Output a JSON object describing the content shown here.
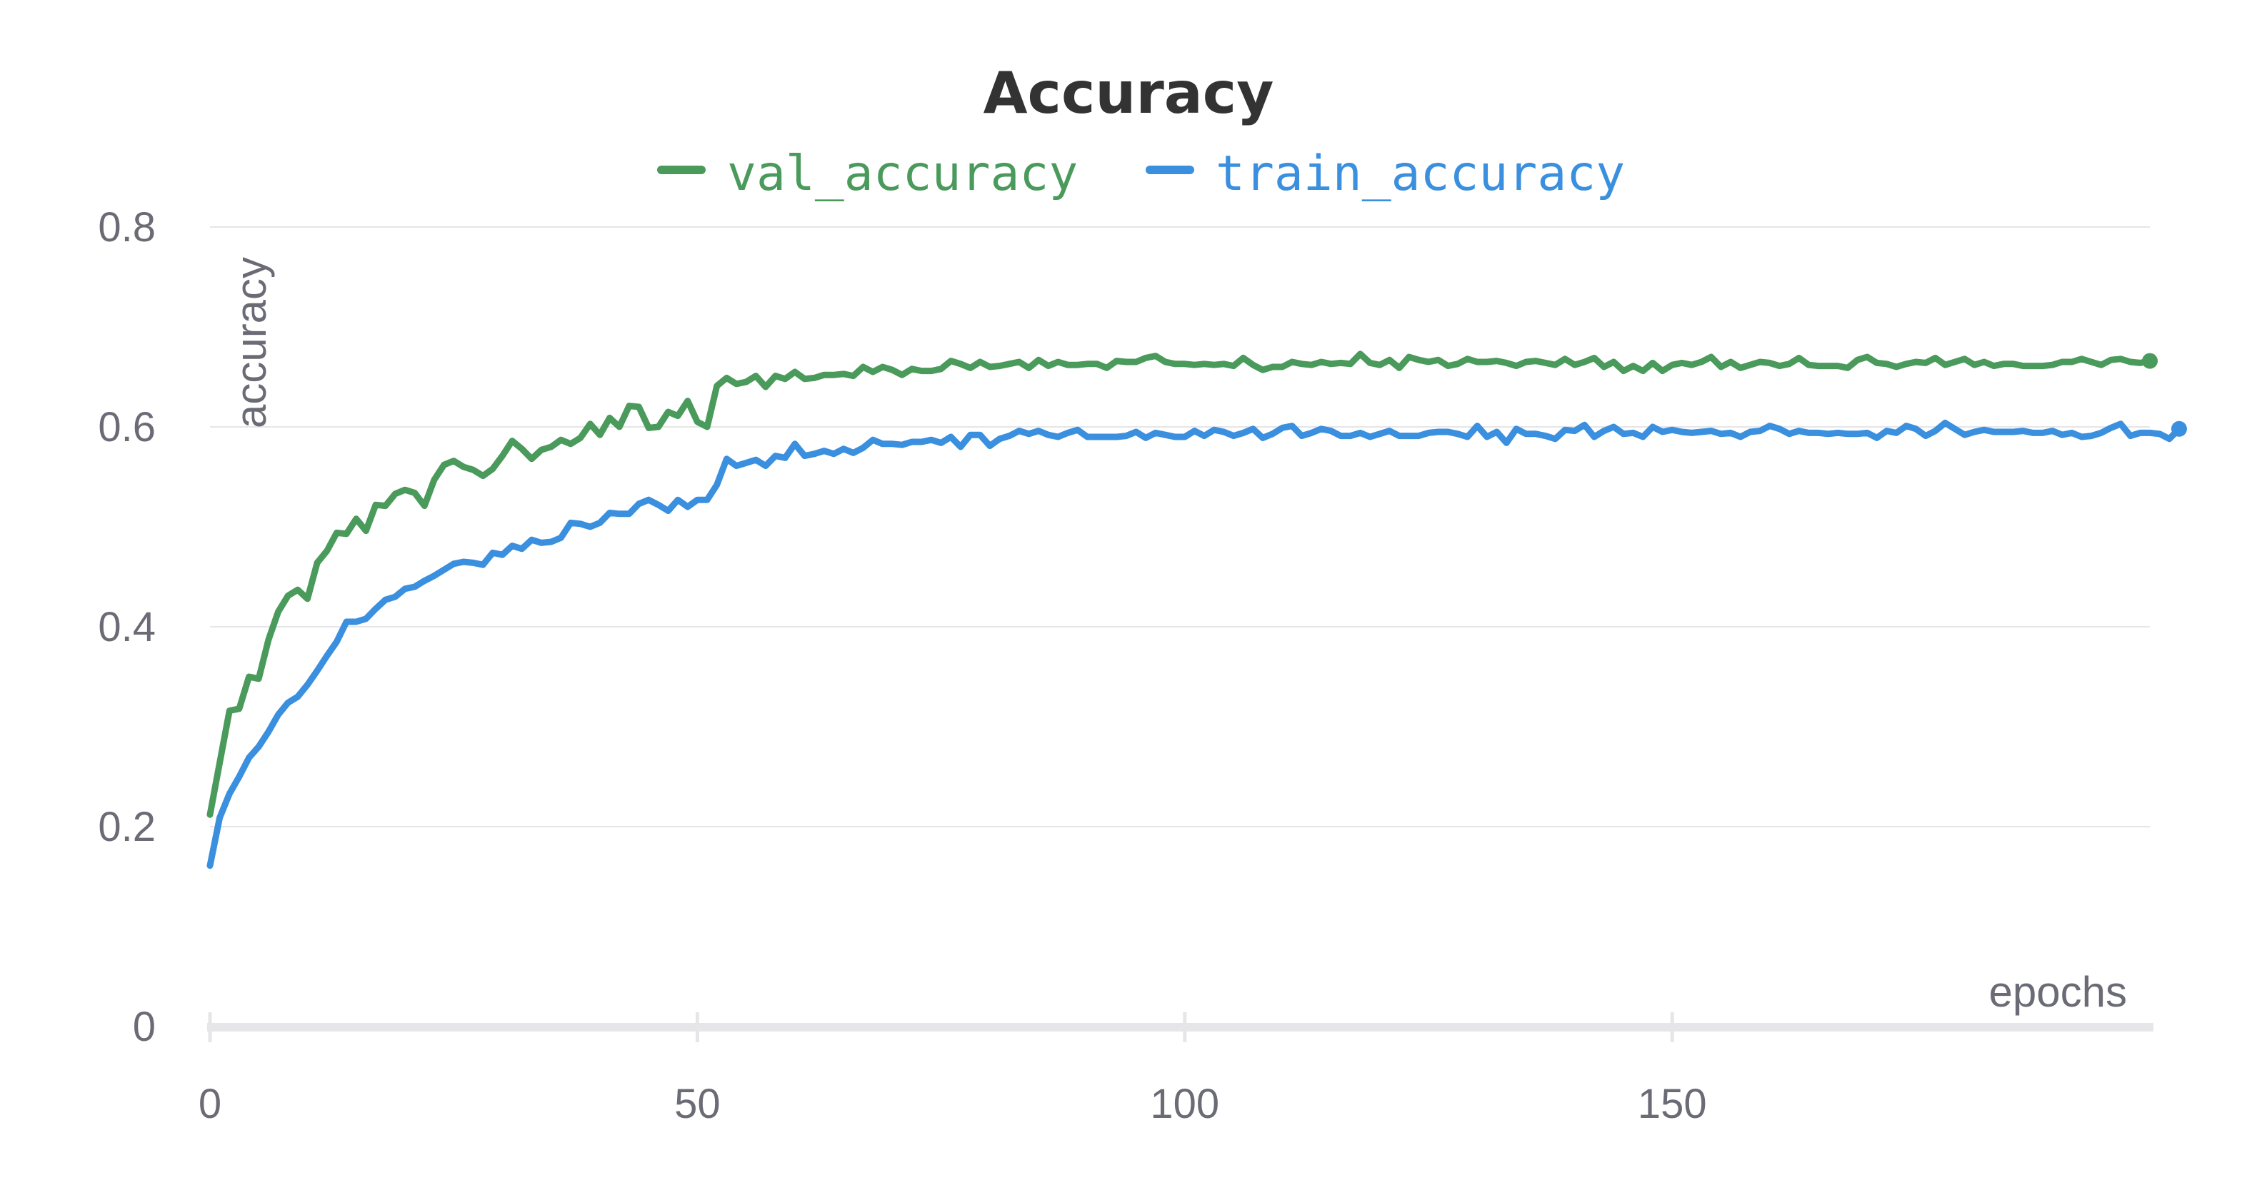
{
  "chart_data": {
    "type": "line",
    "title": "Accuracy",
    "xlabel": "epochs",
    "ylabel": "accuracy",
    "xlim": [
      0,
      199
    ],
    "ylim": [
      0,
      0.8
    ],
    "x_ticks": [
      0,
      50,
      100,
      150
    ],
    "y_ticks": [
      0,
      0.2,
      0.4,
      0.6,
      0.8
    ],
    "grid": true,
    "legend_position": "top-center",
    "series": [
      {
        "name": "val_accuracy",
        "color": "#4a9a5c",
        "values": [
          0.212,
          0.264,
          0.316,
          0.318,
          0.35,
          0.348,
          0.387,
          0.415,
          0.431,
          0.437,
          0.428,
          0.464,
          0.476,
          0.494,
          0.493,
          0.508,
          0.496,
          0.522,
          0.521,
          0.533,
          0.537,
          0.534,
          0.521,
          0.547,
          0.562,
          0.566,
          0.56,
          0.557,
          0.551,
          0.558,
          0.571,
          0.586,
          0.578,
          0.568,
          0.577,
          0.58,
          0.587,
          0.583,
          0.589,
          0.603,
          0.592,
          0.609,
          0.6,
          0.621,
          0.62,
          0.599,
          0.6,
          0.615,
          0.611,
          0.626,
          0.605,
          0.6,
          0.641,
          0.649,
          0.643,
          0.645,
          0.651,
          0.64,
          0.651,
          0.648,
          0.655,
          0.648,
          0.649,
          0.652,
          0.652,
          0.653,
          0.651,
          0.66,
          0.655,
          0.66,
          0.657,
          0.652,
          0.658,
          0.656,
          0.656,
          0.658,
          0.666,
          0.663,
          0.659,
          0.665,
          0.66,
          0.661,
          0.663,
          0.665,
          0.659,
          0.667,
          0.661,
          0.665,
          0.662,
          0.662,
          0.663,
          0.663,
          0.659,
          0.666,
          0.665,
          0.665,
          0.669,
          0.671,
          0.665,
          0.663,
          0.663,
          0.662,
          0.663,
          0.662,
          0.663,
          0.661,
          0.669,
          0.662,
          0.657,
          0.66,
          0.66,
          0.665,
          0.663,
          0.662,
          0.665,
          0.663,
          0.664,
          0.663,
          0.673,
          0.664,
          0.662,
          0.667,
          0.659,
          0.67,
          0.667,
          0.665,
          0.667,
          0.661,
          0.663,
          0.668,
          0.665,
          0.665,
          0.666,
          0.664,
          0.661,
          0.665,
          0.666,
          0.664,
          0.662,
          0.668,
          0.662,
          0.665,
          0.669,
          0.66,
          0.665,
          0.656,
          0.661,
          0.656,
          0.664,
          0.656,
          0.662,
          0.664,
          0.662,
          0.665,
          0.67,
          0.66,
          0.665,
          0.659,
          0.662,
          0.665,
          0.664,
          0.661,
          0.663,
          0.669,
          0.662,
          0.661,
          0.661,
          0.661,
          0.659,
          0.667,
          0.67,
          0.664,
          0.663,
          0.66,
          0.663,
          0.665,
          0.664,
          0.669,
          0.662,
          0.665,
          0.668,
          0.662,
          0.665,
          0.661,
          0.663,
          0.663,
          0.661,
          0.661,
          0.661,
          0.662,
          0.665,
          0.665,
          0.668,
          0.665,
          0.662,
          0.667,
          0.668,
          0.665,
          0.664,
          0.666
        ]
      },
      {
        "name": "train_accuracy",
        "color": "#3a8fde",
        "values": [
          0.161,
          0.209,
          0.233,
          0.25,
          0.269,
          0.28,
          0.295,
          0.312,
          0.324,
          0.33,
          0.342,
          0.356,
          0.371,
          0.385,
          0.405,
          0.405,
          0.408,
          0.418,
          0.427,
          0.43,
          0.438,
          0.44,
          0.446,
          0.451,
          0.457,
          0.463,
          0.465,
          0.464,
          0.462,
          0.474,
          0.472,
          0.481,
          0.478,
          0.487,
          0.484,
          0.485,
          0.489,
          0.504,
          0.503,
          0.5,
          0.504,
          0.514,
          0.513,
          0.513,
          0.523,
          0.527,
          0.522,
          0.516,
          0.527,
          0.52,
          0.527,
          0.527,
          0.542,
          0.568,
          0.561,
          0.564,
          0.567,
          0.561,
          0.571,
          0.569,
          0.583,
          0.571,
          0.573,
          0.576,
          0.573,
          0.578,
          0.574,
          0.579,
          0.587,
          0.583,
          0.583,
          0.582,
          0.585,
          0.585,
          0.587,
          0.584,
          0.59,
          0.58,
          0.592,
          0.592,
          0.581,
          0.588,
          0.591,
          0.596,
          0.593,
          0.596,
          0.592,
          0.59,
          0.594,
          0.597,
          0.59,
          0.59,
          0.59,
          0.59,
          0.591,
          0.595,
          0.589,
          0.594,
          0.592,
          0.59,
          0.59,
          0.596,
          0.591,
          0.597,
          0.595,
          0.591,
          0.594,
          0.598,
          0.589,
          0.593,
          0.599,
          0.601,
          0.591,
          0.594,
          0.598,
          0.596,
          0.591,
          0.591,
          0.594,
          0.59,
          0.593,
          0.596,
          0.591,
          0.591,
          0.591,
          0.594,
          0.595,
          0.595,
          0.593,
          0.59,
          0.601,
          0.59,
          0.595,
          0.584,
          0.598,
          0.593,
          0.593,
          0.591,
          0.588,
          0.597,
          0.596,
          0.602,
          0.59,
          0.596,
          0.6,
          0.593,
          0.594,
          0.59,
          0.6,
          0.595,
          0.597,
          0.595,
          0.594,
          0.595,
          0.596,
          0.593,
          0.594,
          0.59,
          0.595,
          0.596,
          0.601,
          0.598,
          0.593,
          0.596,
          0.594,
          0.594,
          0.593,
          0.594,
          0.593,
          0.593,
          0.594,
          0.589,
          0.596,
          0.594,
          0.601,
          0.598,
          0.591,
          0.596,
          0.604,
          0.598,
          0.592,
          0.595,
          0.597,
          0.595,
          0.595,
          0.595,
          0.596,
          0.594,
          0.594,
          0.596,
          0.592,
          0.594,
          0.59,
          0.591,
          0.594,
          0.599,
          0.603,
          0.591,
          0.594,
          0.594,
          0.593,
          0.588,
          0.598
        ]
      }
    ]
  }
}
